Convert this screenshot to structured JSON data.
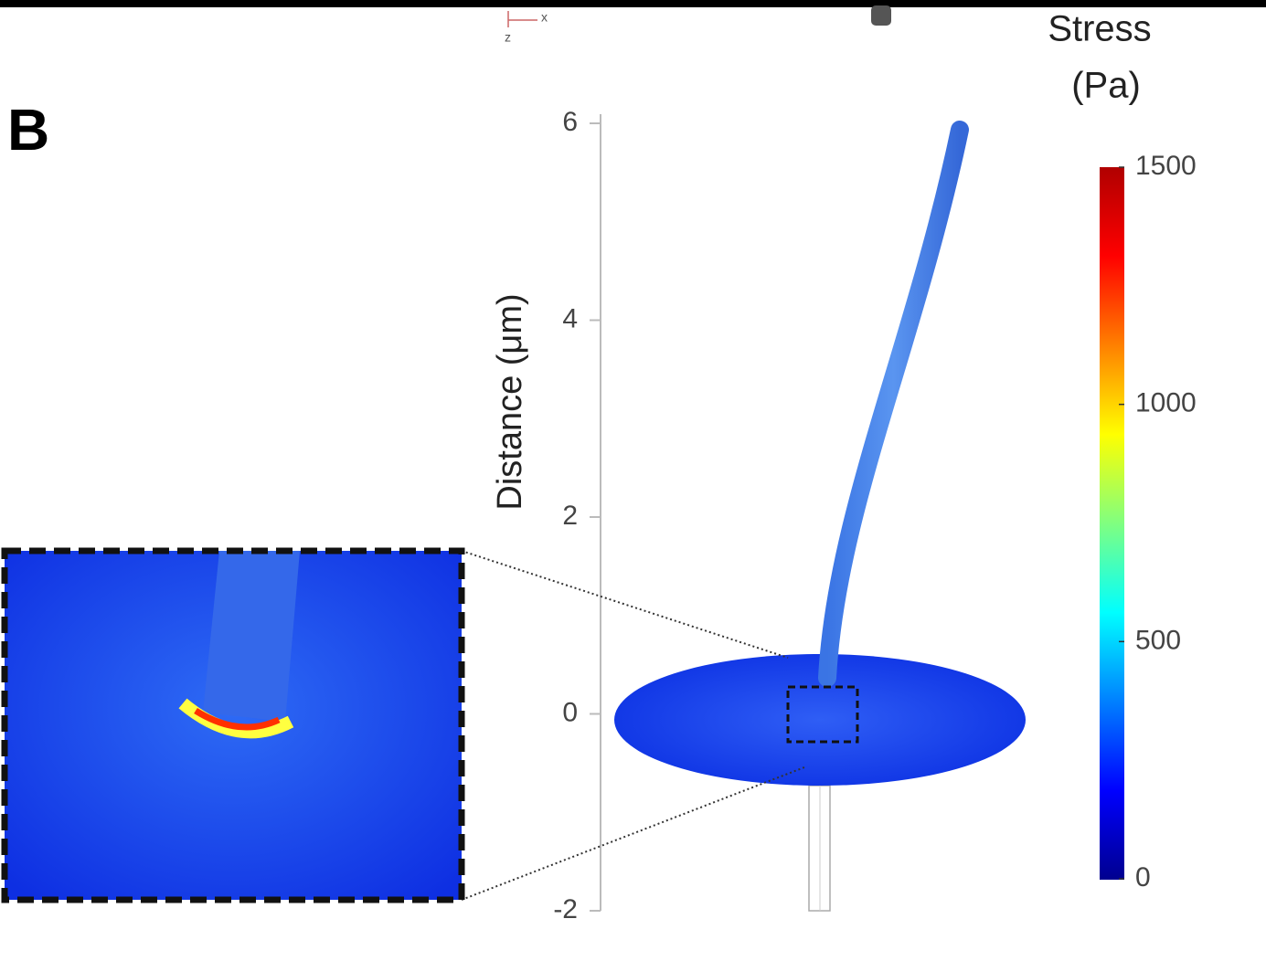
{
  "chart_data": {
    "type": "stress-map",
    "panel_label": "B",
    "axis_compass": [
      "x",
      "z"
    ],
    "ylabel": "Distance (μm)",
    "ylim": [
      -2,
      6
    ],
    "yticks": [
      -2,
      0,
      2,
      4,
      6
    ],
    "colorbar_title": [
      "Stress",
      "(Pa)"
    ],
    "clim": [
      0,
      1500
    ],
    "cticks": [
      0,
      500,
      1000,
      1500
    ],
    "colormap": [
      "#00008f",
      "#0000ff",
      "#0080ff",
      "#00ffff",
      "#80ff80",
      "#ffff00",
      "#ff8000",
      "#ff0000",
      "#b00000"
    ]
  }
}
